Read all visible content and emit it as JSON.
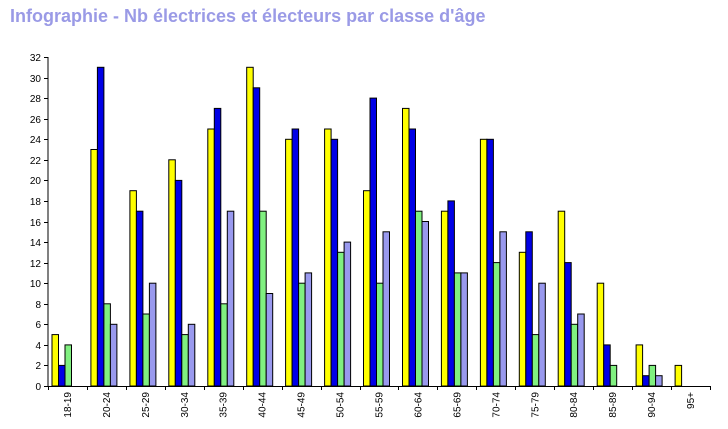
{
  "chart_data": {
    "type": "bar",
    "title": "Infographie - Nb électrices et électeurs par classe d'âge",
    "xlabel": "",
    "ylabel": "",
    "ylim": [
      0,
      32
    ],
    "yticks": [
      0,
      2,
      4,
      6,
      8,
      10,
      12,
      14,
      16,
      18,
      20,
      22,
      24,
      26,
      28,
      30,
      32
    ],
    "grid": false,
    "legend": "none",
    "categories": [
      "18-19",
      "20-24",
      "25-29",
      "30-34",
      "35-39",
      "40-44",
      "45-49",
      "50-54",
      "55-59",
      "60-64",
      "65-69",
      "70-74",
      "75-79",
      "80-84",
      "85-89",
      "90-94",
      "95+"
    ],
    "series": [
      {
        "color": "#ffff00",
        "values": [
          5,
          23,
          19,
          22,
          25,
          31,
          24,
          25,
          19,
          27,
          17,
          24,
          13,
          17,
          10,
          4,
          2
        ]
      },
      {
        "color": "#0000e6",
        "values": [
          2,
          31,
          17,
          20,
          27,
          29,
          25,
          24,
          28,
          25,
          18,
          24,
          15,
          12,
          4,
          1,
          0
        ]
      },
      {
        "color": "#80f080",
        "values": [
          4,
          8,
          7,
          5,
          8,
          17,
          10,
          13,
          10,
          17,
          11,
          12,
          5,
          6,
          2,
          2,
          0
        ]
      },
      {
        "color": "#9999ee",
        "values": [
          0,
          6,
          10,
          6,
          17,
          9,
          11,
          14,
          15,
          16,
          11,
          15,
          10,
          7,
          0,
          1,
          0
        ]
      }
    ]
  }
}
